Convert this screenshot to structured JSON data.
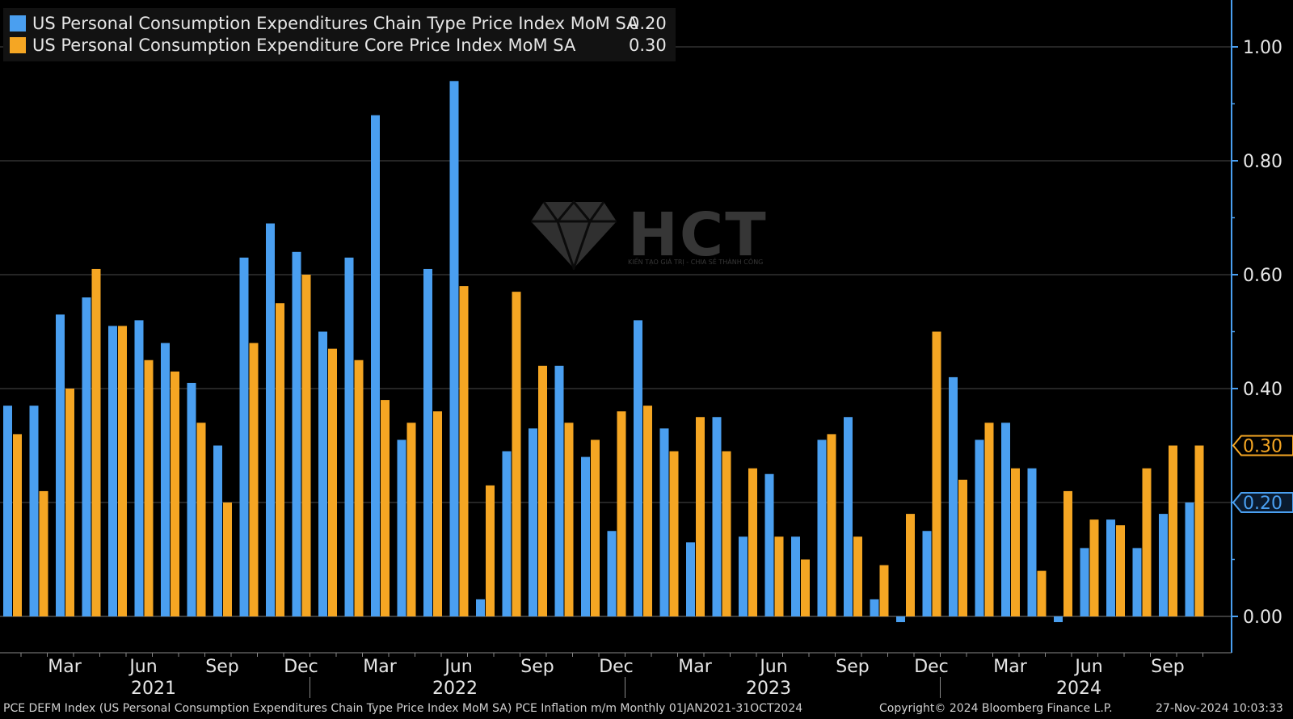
{
  "legend": {
    "series1_label": "US Personal Consumption Expenditures Chain Type Price Index MoM SA",
    "series1_value": "0.20",
    "series2_label": "US Personal Consumption Expenditure Core Price Index MoM SA",
    "series2_value": "0.30"
  },
  "watermark": {
    "text": "HCT",
    "subtitle": "KIẾN TẠO GIÁ TRỊ - CHIA SẺ THÀNH CÔNG"
  },
  "footer": {
    "left": "PCE DEFM Index (US Personal Consumption Expenditures Chain Type Price Index MoM SA) PCE Inflation m/m  Monthly 01JAN2021-31OCT2024",
    "copyright": "Copyright© 2024 Bloomberg Finance L.P.",
    "timestamp": "27-Nov-2024 10:03:33"
  },
  "colors": {
    "pce": "#4a9ff0",
    "core": "#f5a623",
    "background": "#000000",
    "grid": "#4a4a4a",
    "axis": "#4a9ff0"
  },
  "chart_data": {
    "type": "bar",
    "title": "",
    "xlabel": "",
    "ylabel": "",
    "ylim": [
      -0.06,
      1.08
    ],
    "yticks": [
      "0.00",
      "0.20",
      "0.40",
      "0.60",
      "0.80",
      "1.00"
    ],
    "grid": true,
    "legend_position": "top-left",
    "x_month_labels": [
      "Mar",
      "Jun",
      "Sep",
      "Dec",
      "Mar",
      "Jun",
      "Sep",
      "Dec",
      "Mar",
      "Jun",
      "Sep",
      "Dec",
      "Mar",
      "Jun",
      "Sep"
    ],
    "x_year_labels": [
      "2021",
      "2022",
      "2023",
      "2024"
    ],
    "last_value_tags": [
      "0.30",
      "0.20"
    ],
    "categories": [
      "2021-01",
      "2021-02",
      "2021-03",
      "2021-04",
      "2021-05",
      "2021-06",
      "2021-07",
      "2021-08",
      "2021-09",
      "2021-10",
      "2021-11",
      "2021-12",
      "2022-01",
      "2022-02",
      "2022-03",
      "2022-04",
      "2022-05",
      "2022-06",
      "2022-07",
      "2022-08",
      "2022-09",
      "2022-10",
      "2022-11",
      "2022-12",
      "2023-01",
      "2023-02",
      "2023-03",
      "2023-04",
      "2023-05",
      "2023-06",
      "2023-07",
      "2023-08",
      "2023-09",
      "2023-10",
      "2023-11",
      "2023-12",
      "2024-01",
      "2024-02",
      "2024-03",
      "2024-04",
      "2024-05",
      "2024-06",
      "2024-07",
      "2024-08",
      "2024-09",
      "2024-10"
    ],
    "series": [
      {
        "name": "US Personal Consumption Expenditures Chain Type Price Index MoM SA",
        "values": [
          0.37,
          0.37,
          0.53,
          0.56,
          0.51,
          0.52,
          0.48,
          0.41,
          0.3,
          0.63,
          0.69,
          0.64,
          0.5,
          0.63,
          0.88,
          0.31,
          0.61,
          0.94,
          0.03,
          0.29,
          0.33,
          0.44,
          0.28,
          0.15,
          0.52,
          0.33,
          0.13,
          0.35,
          0.14,
          0.25,
          0.14,
          0.31,
          0.35,
          0.03,
          -0.01,
          0.15,
          0.42,
          0.31,
          0.34,
          0.26,
          -0.01,
          0.12,
          0.17,
          0.12,
          0.18,
          0.2
        ]
      },
      {
        "name": "US Personal Consumption Expenditure Core Price Index MoM SA",
        "values": [
          0.32,
          0.22,
          0.4,
          0.61,
          0.51,
          0.45,
          0.43,
          0.34,
          0.2,
          0.48,
          0.55,
          0.6,
          0.47,
          0.45,
          0.38,
          0.34,
          0.36,
          0.58,
          0.23,
          0.57,
          0.44,
          0.34,
          0.31,
          0.36,
          0.37,
          0.29,
          0.35,
          0.29,
          0.26,
          0.14,
          0.1,
          0.32,
          0.14,
          0.09,
          0.18,
          0.5,
          0.24,
          0.34,
          0.26,
          0.08,
          0.22,
          0.17,
          0.16,
          0.26,
          0.3,
          0.3
        ]
      }
    ]
  }
}
